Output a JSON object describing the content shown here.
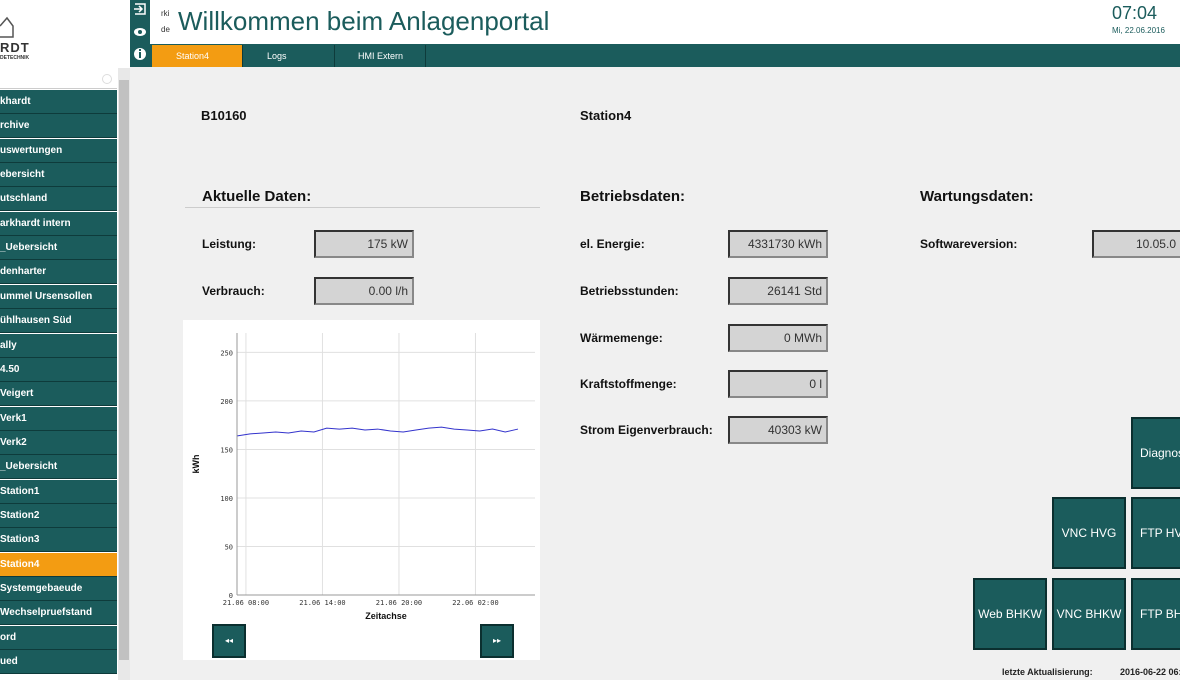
{
  "header": {
    "lang_top": "rki",
    "lang_bottom": "de",
    "title": "Willkommen beim Anlagenportal",
    "time": "07:04",
    "date": "Mi, 22.06.2016"
  },
  "logo": {
    "name": "RDT",
    "subtitle": "DETECHNIK"
  },
  "sidebar": {
    "active": 19,
    "items": [
      "khardt",
      "rchive",
      "uswertungen",
      "ebersicht",
      "utschland",
      "arkhardt intern",
      "_Uebersicht",
      "denharter",
      "ummel Ursensollen",
      "ühlhausen Süd",
      "ally",
      "4.50",
      "Veigert",
      "Verk1",
      "Verk2",
      "_Uebersicht",
      "Station1",
      "Station2",
      "Station3",
      "Station4",
      "Systemgebaeude",
      "Wechselpruefstand",
      "ord",
      "ued"
    ]
  },
  "tabs": [
    {
      "label": "Station4",
      "active": true
    },
    {
      "label": "Logs",
      "active": false
    },
    {
      "label": "HMI Extern",
      "active": false
    }
  ],
  "info": {
    "id": "B10160",
    "station": "Station4"
  },
  "sections": [
    {
      "title": "Aktuelle Daten:",
      "fields": [
        {
          "label": "Leistung:",
          "value": "175 kW"
        },
        {
          "label": "Verbrauch:",
          "value": "0.00 l/h"
        }
      ]
    },
    {
      "title": "Betriebsdaten:",
      "fields": [
        {
          "label": "el. Energie:",
          "value": "4331730 kWh"
        },
        {
          "label": "Betriebsstunden:",
          "value": "26141 Std"
        },
        {
          "label": "Wärmemenge:",
          "value": "0 MWh"
        },
        {
          "label": "Kraftstoffmenge:",
          "value": "0 l"
        },
        {
          "label": "Strom Eigenverbrauch:",
          "value": "40303 kW"
        }
      ]
    },
    {
      "title": "Wartungsdaten:",
      "fields": [
        {
          "label": "Softwareversion:",
          "value": "10.05.0"
        }
      ]
    }
  ],
  "buttons": [
    "Diagnos",
    "VNC HVG",
    "FTP HV",
    "Web BHKW",
    "VNC BHKW",
    "FTP BHK"
  ],
  "footer": {
    "label": "letzte Aktualisierung:",
    "value": "2016-06-22 06:"
  },
  "chart_data": {
    "type": "line",
    "x_label": "Zeitachse",
    "y_label": "kWh",
    "x": [
      "21.06 07:20",
      "21.06 08:20",
      "21.06 09:20",
      "21.06 10:20",
      "21.06 11:20",
      "21.06 12:20",
      "21.06 13:20",
      "21.06 14:20",
      "21.06 15:20",
      "21.06 16:20",
      "21.06 17:20",
      "21.06 18:20",
      "21.06 19:20",
      "21.06 20:20",
      "21.06 21:20",
      "21.06 22:20",
      "21.06 23:20",
      "22.06 00:20",
      "22.06 01:20",
      "22.06 02:20",
      "22.06 03:20",
      "22.06 04:20",
      "22.06 05:20"
    ],
    "series": [
      {
        "name": "kWh",
        "color": "#3333cc",
        "values": [
          164,
          166,
          167,
          168,
          167,
          169,
          168,
          172,
          171,
          172,
          170,
          171,
          169,
          168,
          170,
          172,
          173,
          171,
          170,
          169,
          171,
          168,
          171
        ]
      }
    ],
    "xlim": [
      "21.06 07:18",
      "22.06 06:40"
    ],
    "xticks": [
      "21.06 08:00",
      "21.06 14:00",
      "21.06 20:00",
      "22.06 02:00"
    ],
    "ylim": [
      0,
      270
    ],
    "yticks": [
      0,
      50,
      100,
      150,
      200,
      250
    ],
    "grid": true
  }
}
